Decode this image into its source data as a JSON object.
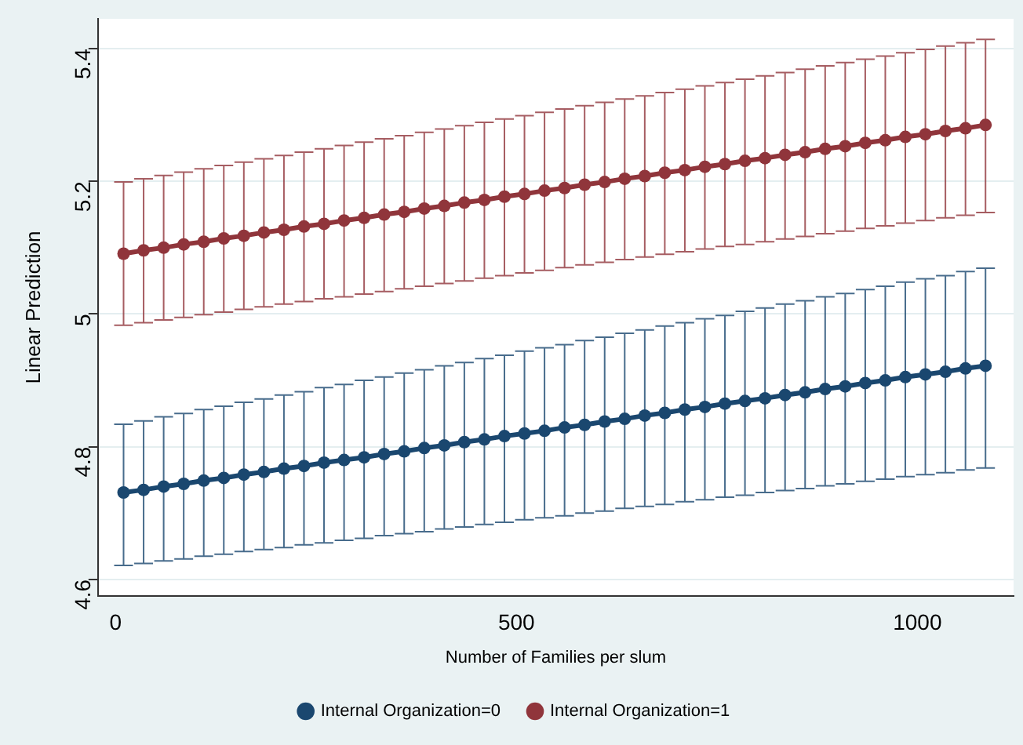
{
  "chart_data": {
    "type": "line",
    "xlabel": "Number of Families per slum",
    "ylabel": "Linear Prediction",
    "x": [
      10,
      35,
      60,
      85,
      110,
      135,
      160,
      185,
      210,
      235,
      260,
      285,
      310,
      335,
      360,
      385,
      410,
      435,
      460,
      485,
      510,
      535,
      560,
      585,
      610,
      635,
      660,
      685,
      710,
      735,
      760,
      785,
      810,
      835,
      860,
      885,
      910,
      935,
      960,
      985,
      1010,
      1035,
      1060,
      1085
    ],
    "series": [
      {
        "name": "Internal Organization=0",
        "color": "#1a476f",
        "values": [
          4.731,
          4.735,
          4.74,
          4.744,
          4.749,
          4.753,
          4.758,
          4.762,
          4.767,
          4.771,
          4.776,
          4.78,
          4.784,
          4.789,
          4.793,
          4.798,
          4.802,
          4.807,
          4.811,
          4.816,
          4.82,
          4.824,
          4.829,
          4.833,
          4.838,
          4.842,
          4.847,
          4.851,
          4.856,
          4.86,
          4.865,
          4.869,
          4.873,
          4.878,
          4.882,
          4.887,
          4.891,
          4.896,
          4.9,
          4.905,
          4.909,
          4.913,
          4.918,
          4.922
        ],
        "errors": [
          [
            4.621,
            4.834
          ],
          [
            4.624,
            4.839
          ],
          [
            4.628,
            4.845
          ],
          [
            4.631,
            4.85
          ],
          [
            4.635,
            4.856
          ],
          [
            4.638,
            4.861
          ],
          [
            4.642,
            4.867
          ],
          [
            4.645,
            4.872
          ],
          [
            4.648,
            4.878
          ],
          [
            4.652,
            4.883
          ],
          [
            4.655,
            4.889
          ],
          [
            4.659,
            4.894
          ],
          [
            4.662,
            4.9
          ],
          [
            4.666,
            4.905
          ],
          [
            4.669,
            4.911
          ],
          [
            4.672,
            4.916
          ],
          [
            4.676,
            4.922
          ],
          [
            4.679,
            4.927
          ],
          [
            4.683,
            4.933
          ],
          [
            4.686,
            4.938
          ],
          [
            4.69,
            4.944
          ],
          [
            4.693,
            4.949
          ],
          [
            4.696,
            4.954
          ],
          [
            4.7,
            4.96
          ],
          [
            4.703,
            4.965
          ],
          [
            4.707,
            4.971
          ],
          [
            4.71,
            4.976
          ],
          [
            4.713,
            4.982
          ],
          [
            4.717,
            4.987
          ],
          [
            4.72,
            4.993
          ],
          [
            4.724,
            4.998
          ],
          [
            4.727,
            5.004
          ],
          [
            4.731,
            5.009
          ],
          [
            4.734,
            5.015
          ],
          [
            4.737,
            5.02
          ],
          [
            4.741,
            5.026
          ],
          [
            4.744,
            5.031
          ],
          [
            4.748,
            5.037
          ],
          [
            4.751,
            5.042
          ],
          [
            4.755,
            5.048
          ],
          [
            4.758,
            5.053
          ],
          [
            4.761,
            5.058
          ],
          [
            4.765,
            5.064
          ],
          [
            4.768,
            5.069
          ]
        ]
      },
      {
        "name": "Internal Organization=1",
        "color": "#90353b",
        "values": [
          5.091,
          5.096,
          5.1,
          5.105,
          5.109,
          5.114,
          5.118,
          5.123,
          5.127,
          5.132,
          5.136,
          5.141,
          5.145,
          5.15,
          5.154,
          5.159,
          5.163,
          5.168,
          5.172,
          5.177,
          5.181,
          5.186,
          5.19,
          5.195,
          5.199,
          5.204,
          5.208,
          5.213,
          5.217,
          5.222,
          5.226,
          5.231,
          5.235,
          5.24,
          5.244,
          5.249,
          5.253,
          5.258,
          5.262,
          5.267,
          5.271,
          5.276,
          5.28,
          5.285
        ],
        "errors": [
          [
            4.983,
            5.199
          ],
          [
            4.987,
            5.204
          ],
          [
            4.991,
            5.209
          ],
          [
            4.995,
            5.214
          ],
          [
            4.999,
            5.219
          ],
          [
            5.003,
            5.224
          ],
          [
            5.007,
            5.229
          ],
          [
            5.011,
            5.234
          ],
          [
            5.015,
            5.239
          ],
          [
            5.019,
            5.244
          ],
          [
            5.023,
            5.249
          ],
          [
            5.026,
            5.254
          ],
          [
            5.03,
            5.259
          ],
          [
            5.034,
            5.264
          ],
          [
            5.038,
            5.269
          ],
          [
            5.042,
            5.274
          ],
          [
            5.046,
            5.279
          ],
          [
            5.05,
            5.284
          ],
          [
            5.054,
            5.289
          ],
          [
            5.058,
            5.294
          ],
          [
            5.062,
            5.299
          ],
          [
            5.066,
            5.304
          ],
          [
            5.07,
            5.309
          ],
          [
            5.074,
            5.314
          ],
          [
            5.078,
            5.319
          ],
          [
            5.082,
            5.324
          ],
          [
            5.086,
            5.329
          ],
          [
            5.09,
            5.334
          ],
          [
            5.094,
            5.339
          ],
          [
            5.098,
            5.344
          ],
          [
            5.102,
            5.349
          ],
          [
            5.105,
            5.354
          ],
          [
            5.109,
            5.359
          ],
          [
            5.113,
            5.364
          ],
          [
            5.117,
            5.369
          ],
          [
            5.121,
            5.374
          ],
          [
            5.125,
            5.379
          ],
          [
            5.129,
            5.384
          ],
          [
            5.133,
            5.389
          ],
          [
            5.137,
            5.394
          ],
          [
            5.141,
            5.399
          ],
          [
            5.145,
            5.404
          ],
          [
            5.149,
            5.409
          ],
          [
            5.153,
            5.414
          ]
        ]
      }
    ],
    "xlim": [
      -22,
      1120
    ],
    "xticks": [
      0,
      500,
      1000
    ],
    "ylim": [
      4.575,
      5.445
    ],
    "yticks": [
      4.6,
      4.8,
      5,
      5.2,
      5.4
    ],
    "grid": "y",
    "legend": "bottom",
    "marker": "circle",
    "line_style": "solid"
  }
}
